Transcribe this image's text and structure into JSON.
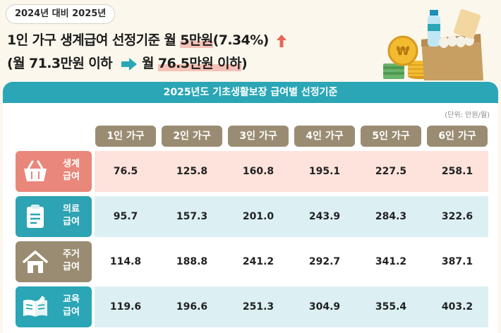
{
  "badge": "2024년 대비 2025년",
  "headline": {
    "prefix": "1인 가구 생계급여 선정기준 월 ",
    "highlight": "5만원",
    "suffix": "(7.34%)"
  },
  "subline": {
    "prev": "(월 71.3만원 이하",
    "next_prefix": "월 ",
    "next_highlight": "76.5만원 이하",
    "next_suffix": ")"
  },
  "table": {
    "title": "2025년도 기초생활보장 급여별 선정기준",
    "unit": "(단위: 만원/월)",
    "columns": [
      "1인 가구",
      "2인 가구",
      "3인 가구",
      "4인 가구",
      "5인 가구",
      "6인 가구"
    ],
    "rows": [
      {
        "label_top": "생계",
        "label_bottom": "급여",
        "icon": "shopping-basket-icon",
        "label_color": "#e9877a",
        "band_color": "#fde3dc",
        "values": [
          "76.5",
          "125.8",
          "160.8",
          "195.1",
          "227.5",
          "258.1"
        ]
      },
      {
        "label_top": "의료",
        "label_bottom": "급여",
        "icon": "medical-clipboard-icon",
        "label_color": "#2ea3b3",
        "band_color": "#dcf0f3",
        "values": [
          "95.7",
          "157.3",
          "201.0",
          "243.9",
          "284.3",
          "322.6"
        ]
      },
      {
        "label_top": "주거",
        "label_bottom": "급여",
        "icon": "house-icon",
        "label_color": "#9a8c72",
        "band_color": "#ffffff",
        "values": [
          "114.8",
          "188.8",
          "241.2",
          "292.7",
          "341.2",
          "387.1"
        ]
      },
      {
        "label_top": "교육",
        "label_bottom": "급여",
        "icon": "open-book-icon",
        "label_color": "#2aa6b6",
        "band_color": "#dcf0f3",
        "values": [
          "119.6",
          "196.6",
          "251.3",
          "304.9",
          "355.4",
          "403.2"
        ]
      }
    ]
  },
  "colors": {
    "accent": "#2aa6b6",
    "warm": "#9a8c72",
    "coral": "#e9877a",
    "up_arrow": "#e8675a"
  }
}
